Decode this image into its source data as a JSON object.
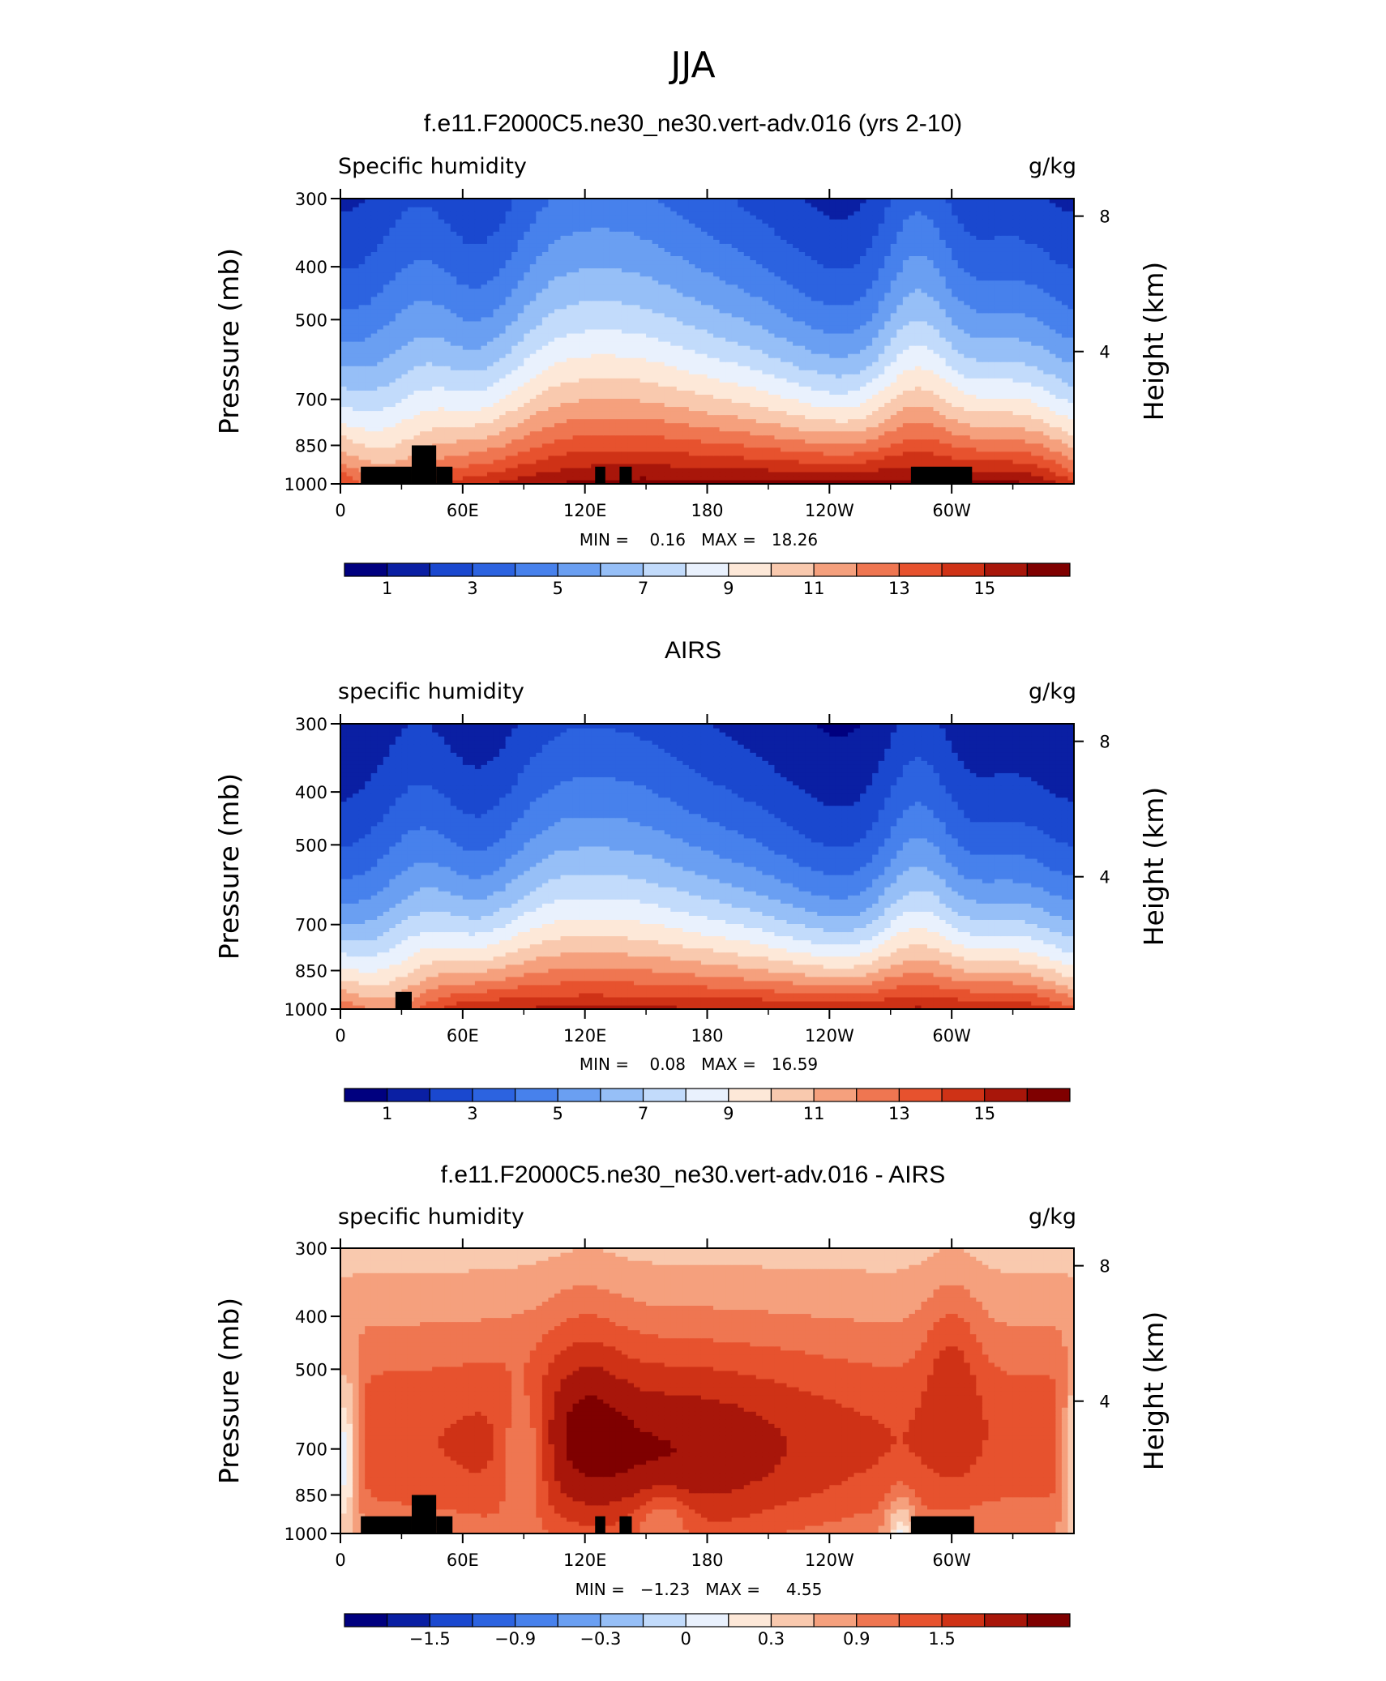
{
  "figure": {
    "title": "JJA"
  },
  "colors": {
    "abs_scale": [
      "#00007f",
      "#0a1fa3",
      "#1a48cf",
      "#2c63e0",
      "#4781ec",
      "#6a9ff2",
      "#96bff7",
      "#c2dbfb",
      "#e9f1fd",
      "#fde8d8",
      "#f9c9ae",
      "#f5a07d",
      "#ef7651",
      "#e7522e",
      "#cf3216",
      "#a8160a",
      "#7f0000"
    ],
    "diff_scale": [
      "#00007f",
      "#0a1fa3",
      "#1a48cf",
      "#2c63e0",
      "#4781ec",
      "#6a9ff2",
      "#96bff7",
      "#c2dbfb",
      "#e9f1fd",
      "#fde8d8",
      "#f9c9ae",
      "#f5a07d",
      "#ef7651",
      "#e7522e",
      "#cf3216",
      "#a8160a",
      "#7f0000"
    ],
    "land_mask": "#000000"
  },
  "chart_data": [
    {
      "type": "heatmap",
      "title": "f.e11.F2000C5.ne30_ne30.vert-adv.016 (yrs 2-10)",
      "left_label": "Specific humidity",
      "right_label": "g/kg",
      "ylabel": "Pressure (mb)",
      "ylabel_right": "Height (km)",
      "x_ticks": [
        "0",
        "60E",
        "120E",
        "180",
        "120W",
        "60W"
      ],
      "y_ticks": [
        "300",
        "400",
        "500",
        "700",
        "850",
        "1000"
      ],
      "y_right_ticks": [
        "8",
        "4"
      ],
      "ylim": [
        1000,
        300
      ],
      "y_scale": "log",
      "stats_text": "MIN =    0.16   MAX =   18.26",
      "stats": {
        "min": 0.16,
        "max": 18.26
      },
      "colorbar_labels": [
        "1",
        "3",
        "5",
        "7",
        "9",
        "11",
        "13",
        "15"
      ],
      "levels": [
        0,
        1,
        2,
        3,
        4,
        5,
        6,
        7,
        8,
        9,
        10,
        11,
        12,
        13,
        14,
        15,
        16
      ],
      "kind": "model"
    },
    {
      "type": "heatmap",
      "title": "AIRS",
      "left_label": "specific humidity",
      "right_label": "g/kg",
      "ylabel": "Pressure (mb)",
      "ylabel_right": "Height (km)",
      "x_ticks": [
        "0",
        "60E",
        "120E",
        "180",
        "120W",
        "60W"
      ],
      "y_ticks": [
        "300",
        "400",
        "500",
        "700",
        "850",
        "1000"
      ],
      "y_right_ticks": [
        "8",
        "4"
      ],
      "ylim": [
        1000,
        300
      ],
      "y_scale": "log",
      "stats_text": "MIN =    0.08   MAX =   16.59",
      "stats": {
        "min": 0.08,
        "max": 16.59
      },
      "colorbar_labels": [
        "1",
        "3",
        "5",
        "7",
        "9",
        "11",
        "13",
        "15"
      ],
      "levels": [
        0,
        1,
        2,
        3,
        4,
        5,
        6,
        7,
        8,
        9,
        10,
        11,
        12,
        13,
        14,
        15,
        16
      ],
      "kind": "obs"
    },
    {
      "type": "heatmap",
      "title": "f.e11.F2000C5.ne30_ne30.vert-adv.016 - AIRS",
      "left_label": "specific humidity",
      "right_label": "g/kg",
      "ylabel": "Pressure (mb)",
      "ylabel_right": "Height (km)",
      "x_ticks": [
        "0",
        "60E",
        "120E",
        "180",
        "120W",
        "60W"
      ],
      "y_ticks": [
        "300",
        "400",
        "500",
        "700",
        "850",
        "1000"
      ],
      "y_right_ticks": [
        "8",
        "4"
      ],
      "ylim": [
        1000,
        300
      ],
      "y_scale": "log",
      "stats_text": "MIN =   −1.23   MAX =     4.55",
      "stats": {
        "min": -1.23,
        "max": 4.55
      },
      "colorbar_labels": [
        "−1.5",
        "−0.9",
        "−0.3",
        "0",
        "0.3",
        "0.9",
        "1.5"
      ],
      "levels": [
        -2.1,
        -1.8,
        -1.5,
        -1.2,
        -0.9,
        -0.6,
        -0.3,
        -0.1,
        0,
        0.1,
        0.3,
        0.6,
        0.9,
        1.2,
        1.5,
        1.8,
        2.1
      ],
      "kind": "diff"
    }
  ]
}
